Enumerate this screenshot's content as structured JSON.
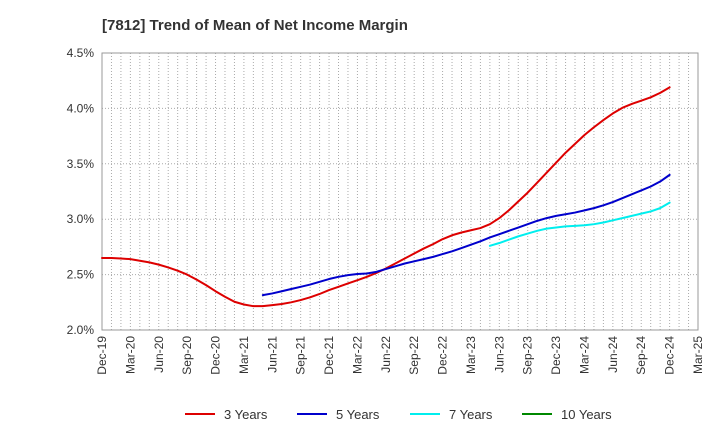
{
  "chart_data": {
    "type": "line",
    "title": "[7812]  Trend of Mean of Net Income Margin",
    "xlabel": "",
    "ylabel": "",
    "x_ticks": [
      "Dec-19",
      "Mar-20",
      "Jun-20",
      "Sep-20",
      "Dec-20",
      "Mar-21",
      "Jun-21",
      "Sep-21",
      "Dec-21",
      "Mar-22",
      "Jun-22",
      "Sep-22",
      "Dec-22",
      "Mar-23",
      "Jun-23",
      "Sep-23",
      "Dec-23",
      "Mar-24",
      "Jun-24",
      "Sep-24",
      "Dec-24",
      "Mar-25"
    ],
    "ylim": [
      2.0,
      4.5
    ],
    "y_ticks": [
      "2.0%",
      "2.5%",
      "3.0%",
      "3.5%",
      "4.0%",
      "4.5%"
    ],
    "y_tick_values": [
      2.0,
      2.5,
      3.0,
      3.5,
      4.0,
      4.5
    ],
    "grid": true,
    "legend_position": "bottom",
    "series": [
      {
        "name": "3 Years",
        "color": "#dd0000",
        "points": [
          [
            "Dec-19",
            2.65
          ],
          [
            "Jan-20",
            2.65
          ],
          [
            "Feb-20",
            2.645
          ],
          [
            "Mar-20",
            2.64
          ],
          [
            "Apr-20",
            2.625
          ],
          [
            "May-20",
            2.61
          ],
          [
            "Jun-20",
            2.59
          ],
          [
            "Jul-20",
            2.565
          ],
          [
            "Aug-20",
            2.535
          ],
          [
            "Sep-20",
            2.5
          ],
          [
            "Oct-20",
            2.455
          ],
          [
            "Nov-20",
            2.405
          ],
          [
            "Dec-20",
            2.35
          ],
          [
            "Jan-21",
            2.3
          ],
          [
            "Feb-21",
            2.255
          ],
          [
            "Mar-21",
            2.23
          ],
          [
            "Apr-21",
            2.215
          ],
          [
            "May-21",
            2.215
          ],
          [
            "Jun-21",
            2.225
          ],
          [
            "Jul-21",
            2.235
          ],
          [
            "Aug-21",
            2.25
          ],
          [
            "Sep-21",
            2.27
          ],
          [
            "Oct-21",
            2.295
          ],
          [
            "Nov-21",
            2.325
          ],
          [
            "Dec-21",
            2.36
          ],
          [
            "Jan-22",
            2.39
          ],
          [
            "Feb-22",
            2.42
          ],
          [
            "Mar-22",
            2.45
          ],
          [
            "Apr-22",
            2.48
          ],
          [
            "May-22",
            2.515
          ],
          [
            "Jun-22",
            2.555
          ],
          [
            "Jul-22",
            2.6
          ],
          [
            "Aug-22",
            2.645
          ],
          [
            "Sep-22",
            2.69
          ],
          [
            "Oct-22",
            2.735
          ],
          [
            "Nov-22",
            2.775
          ],
          [
            "Dec-22",
            2.82
          ],
          [
            "Jan-23",
            2.855
          ],
          [
            "Feb-23",
            2.88
          ],
          [
            "Mar-23",
            2.9
          ],
          [
            "Apr-23",
            2.92
          ],
          [
            "May-23",
            2.955
          ],
          [
            "Jun-23",
            3.01
          ],
          [
            "Jul-23",
            3.08
          ],
          [
            "Aug-23",
            3.16
          ],
          [
            "Sep-23",
            3.24
          ],
          [
            "Oct-23",
            3.33
          ],
          [
            "Nov-23",
            3.42
          ],
          [
            "Dec-23",
            3.51
          ],
          [
            "Jan-24",
            3.6
          ],
          [
            "Feb-24",
            3.68
          ],
          [
            "Mar-24",
            3.76
          ],
          [
            "Apr-24",
            3.83
          ],
          [
            "May-24",
            3.895
          ],
          [
            "Jun-24",
            3.955
          ],
          [
            "Jul-24",
            4.005
          ],
          [
            "Aug-24",
            4.04
          ],
          [
            "Sep-24",
            4.07
          ],
          [
            "Oct-24",
            4.1
          ],
          [
            "Nov-24",
            4.14
          ],
          [
            "Dec-24",
            4.19
          ]
        ]
      },
      {
        "name": "5 Years",
        "color": "#0000cc",
        "points": [
          [
            "May-21",
            2.315
          ],
          [
            "Jun-21",
            2.33
          ],
          [
            "Jul-21",
            2.35
          ],
          [
            "Aug-21",
            2.37
          ],
          [
            "Sep-21",
            2.39
          ],
          [
            "Oct-21",
            2.41
          ],
          [
            "Nov-21",
            2.435
          ],
          [
            "Dec-21",
            2.46
          ],
          [
            "Jan-22",
            2.48
          ],
          [
            "Feb-22",
            2.495
          ],
          [
            "Mar-22",
            2.505
          ],
          [
            "Apr-22",
            2.51
          ],
          [
            "May-22",
            2.525
          ],
          [
            "Jun-22",
            2.55
          ],
          [
            "Jul-22",
            2.575
          ],
          [
            "Aug-22",
            2.6
          ],
          [
            "Sep-22",
            2.62
          ],
          [
            "Oct-22",
            2.64
          ],
          [
            "Nov-22",
            2.66
          ],
          [
            "Dec-22",
            2.685
          ],
          [
            "Jan-23",
            2.71
          ],
          [
            "Feb-23",
            2.74
          ],
          [
            "Mar-23",
            2.77
          ],
          [
            "Apr-23",
            2.8
          ],
          [
            "May-23",
            2.835
          ],
          [
            "Jun-23",
            2.865
          ],
          [
            "Jul-23",
            2.895
          ],
          [
            "Aug-23",
            2.925
          ],
          [
            "Sep-23",
            2.955
          ],
          [
            "Oct-23",
            2.985
          ],
          [
            "Nov-23",
            3.01
          ],
          [
            "Dec-23",
            3.03
          ],
          [
            "Jan-24",
            3.045
          ],
          [
            "Feb-24",
            3.06
          ],
          [
            "Mar-24",
            3.08
          ],
          [
            "Apr-24",
            3.1
          ],
          [
            "May-24",
            3.125
          ],
          [
            "Jun-24",
            3.155
          ],
          [
            "Jul-24",
            3.19
          ],
          [
            "Aug-24",
            3.225
          ],
          [
            "Sep-24",
            3.26
          ],
          [
            "Oct-24",
            3.295
          ],
          [
            "Nov-24",
            3.34
          ],
          [
            "Dec-24",
            3.4
          ]
        ]
      },
      {
        "name": "7 Years",
        "color": "#00eeee",
        "points": [
          [
            "May-23",
            2.76
          ],
          [
            "Jun-23",
            2.785
          ],
          [
            "Jul-23",
            2.815
          ],
          [
            "Aug-23",
            2.845
          ],
          [
            "Sep-23",
            2.87
          ],
          [
            "Oct-23",
            2.895
          ],
          [
            "Nov-23",
            2.915
          ],
          [
            "Dec-23",
            2.925
          ],
          [
            "Jan-24",
            2.935
          ],
          [
            "Feb-24",
            2.94
          ],
          [
            "Mar-24",
            2.945
          ],
          [
            "Apr-24",
            2.955
          ],
          [
            "May-24",
            2.97
          ],
          [
            "Jun-24",
            2.99
          ],
          [
            "Jul-24",
            3.01
          ],
          [
            "Aug-24",
            3.03
          ],
          [
            "Sep-24",
            3.05
          ],
          [
            "Oct-24",
            3.07
          ],
          [
            "Nov-24",
            3.1
          ],
          [
            "Dec-24",
            3.15
          ]
        ]
      },
      {
        "name": "10 Years",
        "color": "#008800",
        "points": []
      }
    ]
  }
}
